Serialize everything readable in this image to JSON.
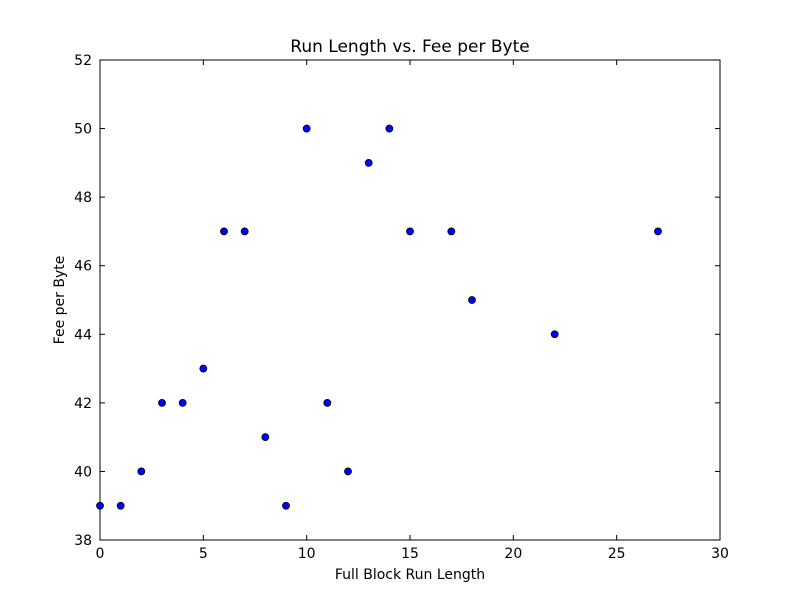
{
  "chart_data": {
    "type": "scatter",
    "title": "Run Length vs. Fee per Byte",
    "xlabel": "Full Block Run Length",
    "ylabel": "Fee per Byte",
    "xlim": [
      0,
      30
    ],
    "ylim": [
      38,
      52
    ],
    "xticks": [
      0,
      5,
      10,
      15,
      20,
      25,
      30
    ],
    "yticks": [
      38,
      40,
      42,
      44,
      46,
      48,
      50,
      52
    ],
    "grid": false,
    "marker_color": "#0000ff",
    "marker_edge": "#000000",
    "points": [
      {
        "x": 0,
        "y": 39
      },
      {
        "x": 1,
        "y": 39
      },
      {
        "x": 2,
        "y": 40
      },
      {
        "x": 3,
        "y": 42
      },
      {
        "x": 4,
        "y": 42
      },
      {
        "x": 5,
        "y": 43
      },
      {
        "x": 6,
        "y": 47
      },
      {
        "x": 7,
        "y": 47
      },
      {
        "x": 8,
        "y": 41
      },
      {
        "x": 9,
        "y": 39
      },
      {
        "x": 10,
        "y": 50
      },
      {
        "x": 11,
        "y": 42
      },
      {
        "x": 12,
        "y": 40
      },
      {
        "x": 13,
        "y": 49
      },
      {
        "x": 14,
        "y": 50
      },
      {
        "x": 15,
        "y": 47
      },
      {
        "x": 17,
        "y": 47
      },
      {
        "x": 18,
        "y": 45
      },
      {
        "x": 22,
        "y": 44
      },
      {
        "x": 27,
        "y": 47
      }
    ]
  }
}
